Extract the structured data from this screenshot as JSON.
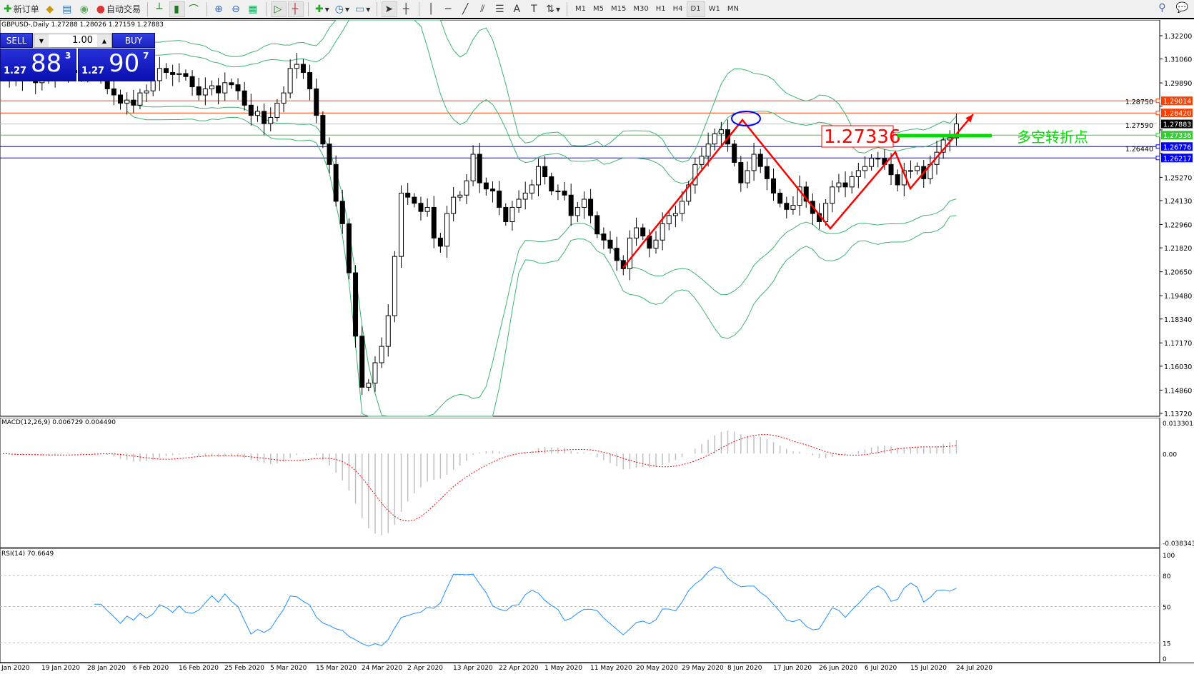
{
  "toolbar": {
    "new_order": "新订单",
    "auto_trading": "自动交易",
    "icons": [
      "new-order-icon",
      "market-watch-icon",
      "data-window-icon",
      "signals-icon",
      "auto-trading-icon",
      "bar-chart-icon",
      "candlestick-icon",
      "line-chart-icon",
      "zoom-in-icon",
      "zoom-out-icon",
      "tile-windows-icon",
      "chart-shift-icon",
      "autoscroll-icon",
      "indicators-icon",
      "periods-icon",
      "templates-icon",
      "cursor-icon",
      "crosshair-icon",
      "vertical-line-icon",
      "horizontal-line-icon",
      "trendline-icon",
      "equidistant-channel-icon",
      "fibonacci-icon",
      "text-icon",
      "text-label-icon",
      "arrows-icon"
    ],
    "timeframes": [
      "M1",
      "M5",
      "M15",
      "M30",
      "H1",
      "H4",
      "D1",
      "W1",
      "MN"
    ],
    "active_timeframe": "D1"
  },
  "chart": {
    "title": "GBPUSD-,Daily  1.27288 1.28026 1.27159 1.27883",
    "trade_panel": {
      "sell": "SELL",
      "buy": "BUY",
      "lot": "1.00",
      "bid_big": "1.27",
      "bid_pips": "88",
      "bid_point": "3",
      "ask_big": "1.27",
      "ask_pips": "90",
      "ask_point": "7"
    },
    "price_ticks": [
      "1.32200",
      "1.31060",
      "1.29890",
      "1.28750",
      "1.27590",
      "1.26440",
      "1.25270",
      "1.24130",
      "1.22960",
      "1.21820",
      "1.20650",
      "1.19480",
      "1.18340",
      "1.17170",
      "1.16030",
      "1.14860",
      "1.13720"
    ],
    "levels": [
      {
        "price": "1.29014",
        "color": "#ff4000"
      },
      {
        "price": "1.28420",
        "color": "#ff4000"
      },
      {
        "price": "1.27883",
        "color": "#000000",
        "line": "#c0c0c0"
      },
      {
        "price": "1.27336",
        "color": "#33cc33"
      },
      {
        "price": "1.26776",
        "color": "#0000ff"
      },
      {
        "price": "1.26217",
        "color": "#0000ff"
      }
    ],
    "annotation_price": "1.27336",
    "annotation_text": "多空转折点",
    "colors": {
      "bands": "#3cb371",
      "arrows": "#ff0000",
      "ellipse": "#0000ff",
      "macd_hist": "#c0c0c0",
      "macd_signal": "#ff0000",
      "rsi": "#1e90ff",
      "green_mark": "#00dd00"
    }
  },
  "macd": {
    "title": "MACD(12,26,9) 0.006729 0.004490",
    "ticks": [
      "0.013301",
      "0.00",
      "-0.038343"
    ]
  },
  "rsi": {
    "title": "RSI(14) 70.6649",
    "ticks": [
      "100",
      "80",
      "50",
      "15",
      "0"
    ],
    "current": 70.6649
  },
  "dates": [
    "Jan 2020",
    "19 Jan 2020",
    "28 Jan 2020",
    "6 Feb 2020",
    "16 Feb 2020",
    "25 Feb 2020",
    "5 Mar 2020",
    "15 Mar 2020",
    "24 Mar 2020",
    "2 Apr 2020",
    "13 Apr 2020",
    "22 Apr 2020",
    "1 May 2020",
    "11 May 2020",
    "20 May 2020",
    "29 May 2020",
    "8 Jun 2020",
    "17 Jun 2020",
    "26 Jun 2020",
    "6 Jul 2020",
    "15 Jul 2020",
    "24 Jul 2020"
  ],
  "chart_data": {
    "type": "candlestick",
    "symbol": "GBPUSD",
    "timeframe": "Daily",
    "ylim": [
      1.1372,
      1.322
    ],
    "closes": [
      1.305,
      1.301,
      1.3,
      1.303,
      1.306,
      1.299,
      1.3005,
      1.301,
      1.306,
      1.3075,
      1.304,
      1.305,
      1.309,
      1.303,
      1.307,
      1.303,
      1.296,
      1.293,
      1.289,
      1.2905,
      1.288,
      1.294,
      1.295,
      1.3,
      1.306,
      1.304,
      1.303,
      1.3035,
      1.302,
      1.297,
      1.293,
      1.296,
      1.2975,
      1.294,
      1.299,
      1.298,
      1.295,
      1.288,
      1.283,
      1.285,
      1.279,
      1.282,
      1.289,
      1.294,
      1.306,
      1.308,
      1.304,
      1.296,
      1.283,
      1.269,
      1.259,
      1.241,
      1.23,
      1.206,
      1.175,
      1.15,
      1.152,
      1.162,
      1.17,
      1.185,
      1.214,
      1.245,
      1.243,
      1.24,
      1.236,
      1.238,
      1.223,
      1.219,
      1.235,
      1.243,
      1.244,
      1.251,
      1.264,
      1.25,
      1.247,
      1.246,
      1.238,
      1.231,
      1.238,
      1.242,
      1.245,
      1.249,
      1.258,
      1.253,
      1.246,
      1.246,
      1.244,
      1.234,
      1.238,
      1.242,
      1.234,
      1.225,
      1.222,
      1.218,
      1.212,
      1.208,
      1.223,
      1.228,
      1.224,
      1.218,
      1.222,
      1.23,
      1.234,
      1.235,
      1.241,
      1.249,
      1.259,
      1.263,
      1.269,
      1.274,
      1.276,
      1.269,
      1.26,
      1.25,
      1.256,
      1.264,
      1.258,
      1.252,
      1.245,
      1.24,
      1.237,
      1.239,
      1.248,
      1.241,
      1.235,
      1.231,
      1.24,
      1.248,
      1.25,
      1.248,
      1.253,
      1.256,
      1.258,
      1.262,
      1.262,
      1.259,
      1.254,
      1.249,
      1.256,
      1.256,
      1.258,
      1.252,
      1.259,
      1.265,
      1.271,
      1.272,
      1.27883
    ],
    "indicators": [
      "Bollinger Bands(20)",
      "MACD(12,26,9)",
      "RSI(14)"
    ]
  }
}
